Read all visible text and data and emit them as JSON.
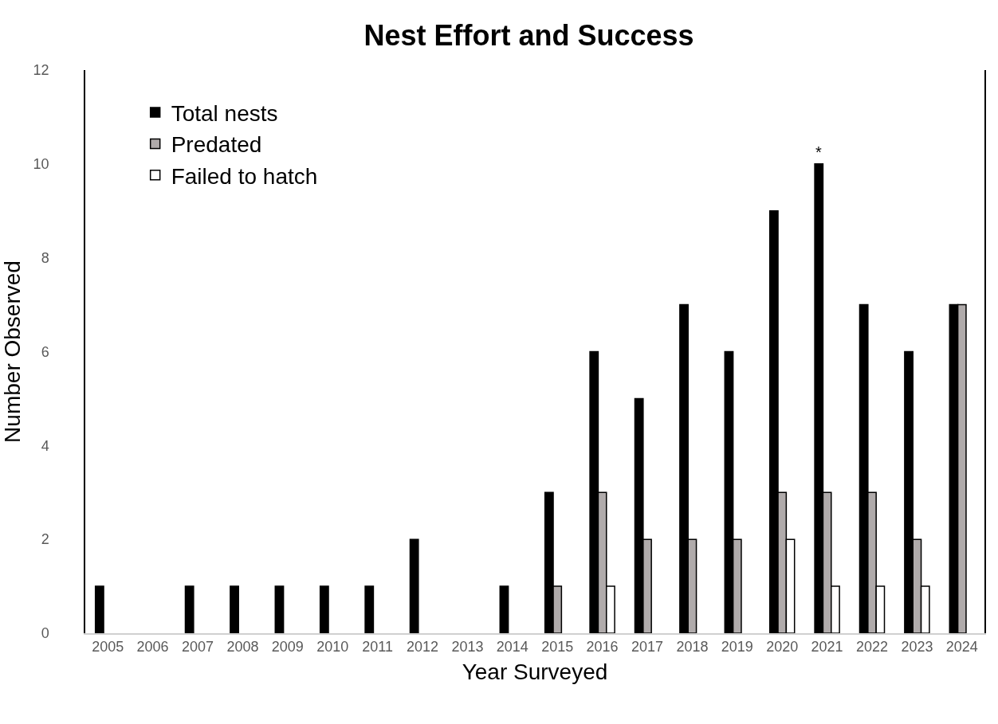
{
  "chart_data": {
    "type": "bar",
    "title": "Nest Effort and Success",
    "xlabel": "Year Surveyed",
    "ylabel": "Number Observed",
    "categories": [
      "2005",
      "2006",
      "2007",
      "2008",
      "2009",
      "2010",
      "2011",
      "2012",
      "2013",
      "2014",
      "2015",
      "2016",
      "2017",
      "2018",
      "2019",
      "2020",
      "2021",
      "2022",
      "2023",
      "2024"
    ],
    "series": [
      {
        "name": "Total nests",
        "color": "#000000",
        "values": [
          1,
          0,
          1,
          1,
          1,
          1,
          1,
          2,
          0,
          1,
          3,
          6,
          5,
          7,
          6,
          9,
          10,
          7,
          6,
          7
        ]
      },
      {
        "name": "Predated",
        "color": "#b0abab",
        "values": [
          0,
          0,
          0,
          0,
          0,
          0,
          0,
          0,
          0,
          0,
          1,
          3,
          2,
          2,
          2,
          3,
          3,
          3,
          2,
          7
        ]
      },
      {
        "name": "Failed to hatch",
        "color": "#ffffff",
        "values": [
          0,
          0,
          0,
          0,
          0,
          0,
          0,
          0,
          0,
          0,
          0,
          1,
          0,
          0,
          0,
          2,
          1,
          1,
          1,
          0
        ]
      }
    ],
    "ylim": [
      0,
      12
    ],
    "yticks": [
      0,
      2,
      4,
      6,
      8,
      10,
      12
    ],
    "grid": false,
    "legend": "top left",
    "annotations": [
      "*"
    ]
  }
}
